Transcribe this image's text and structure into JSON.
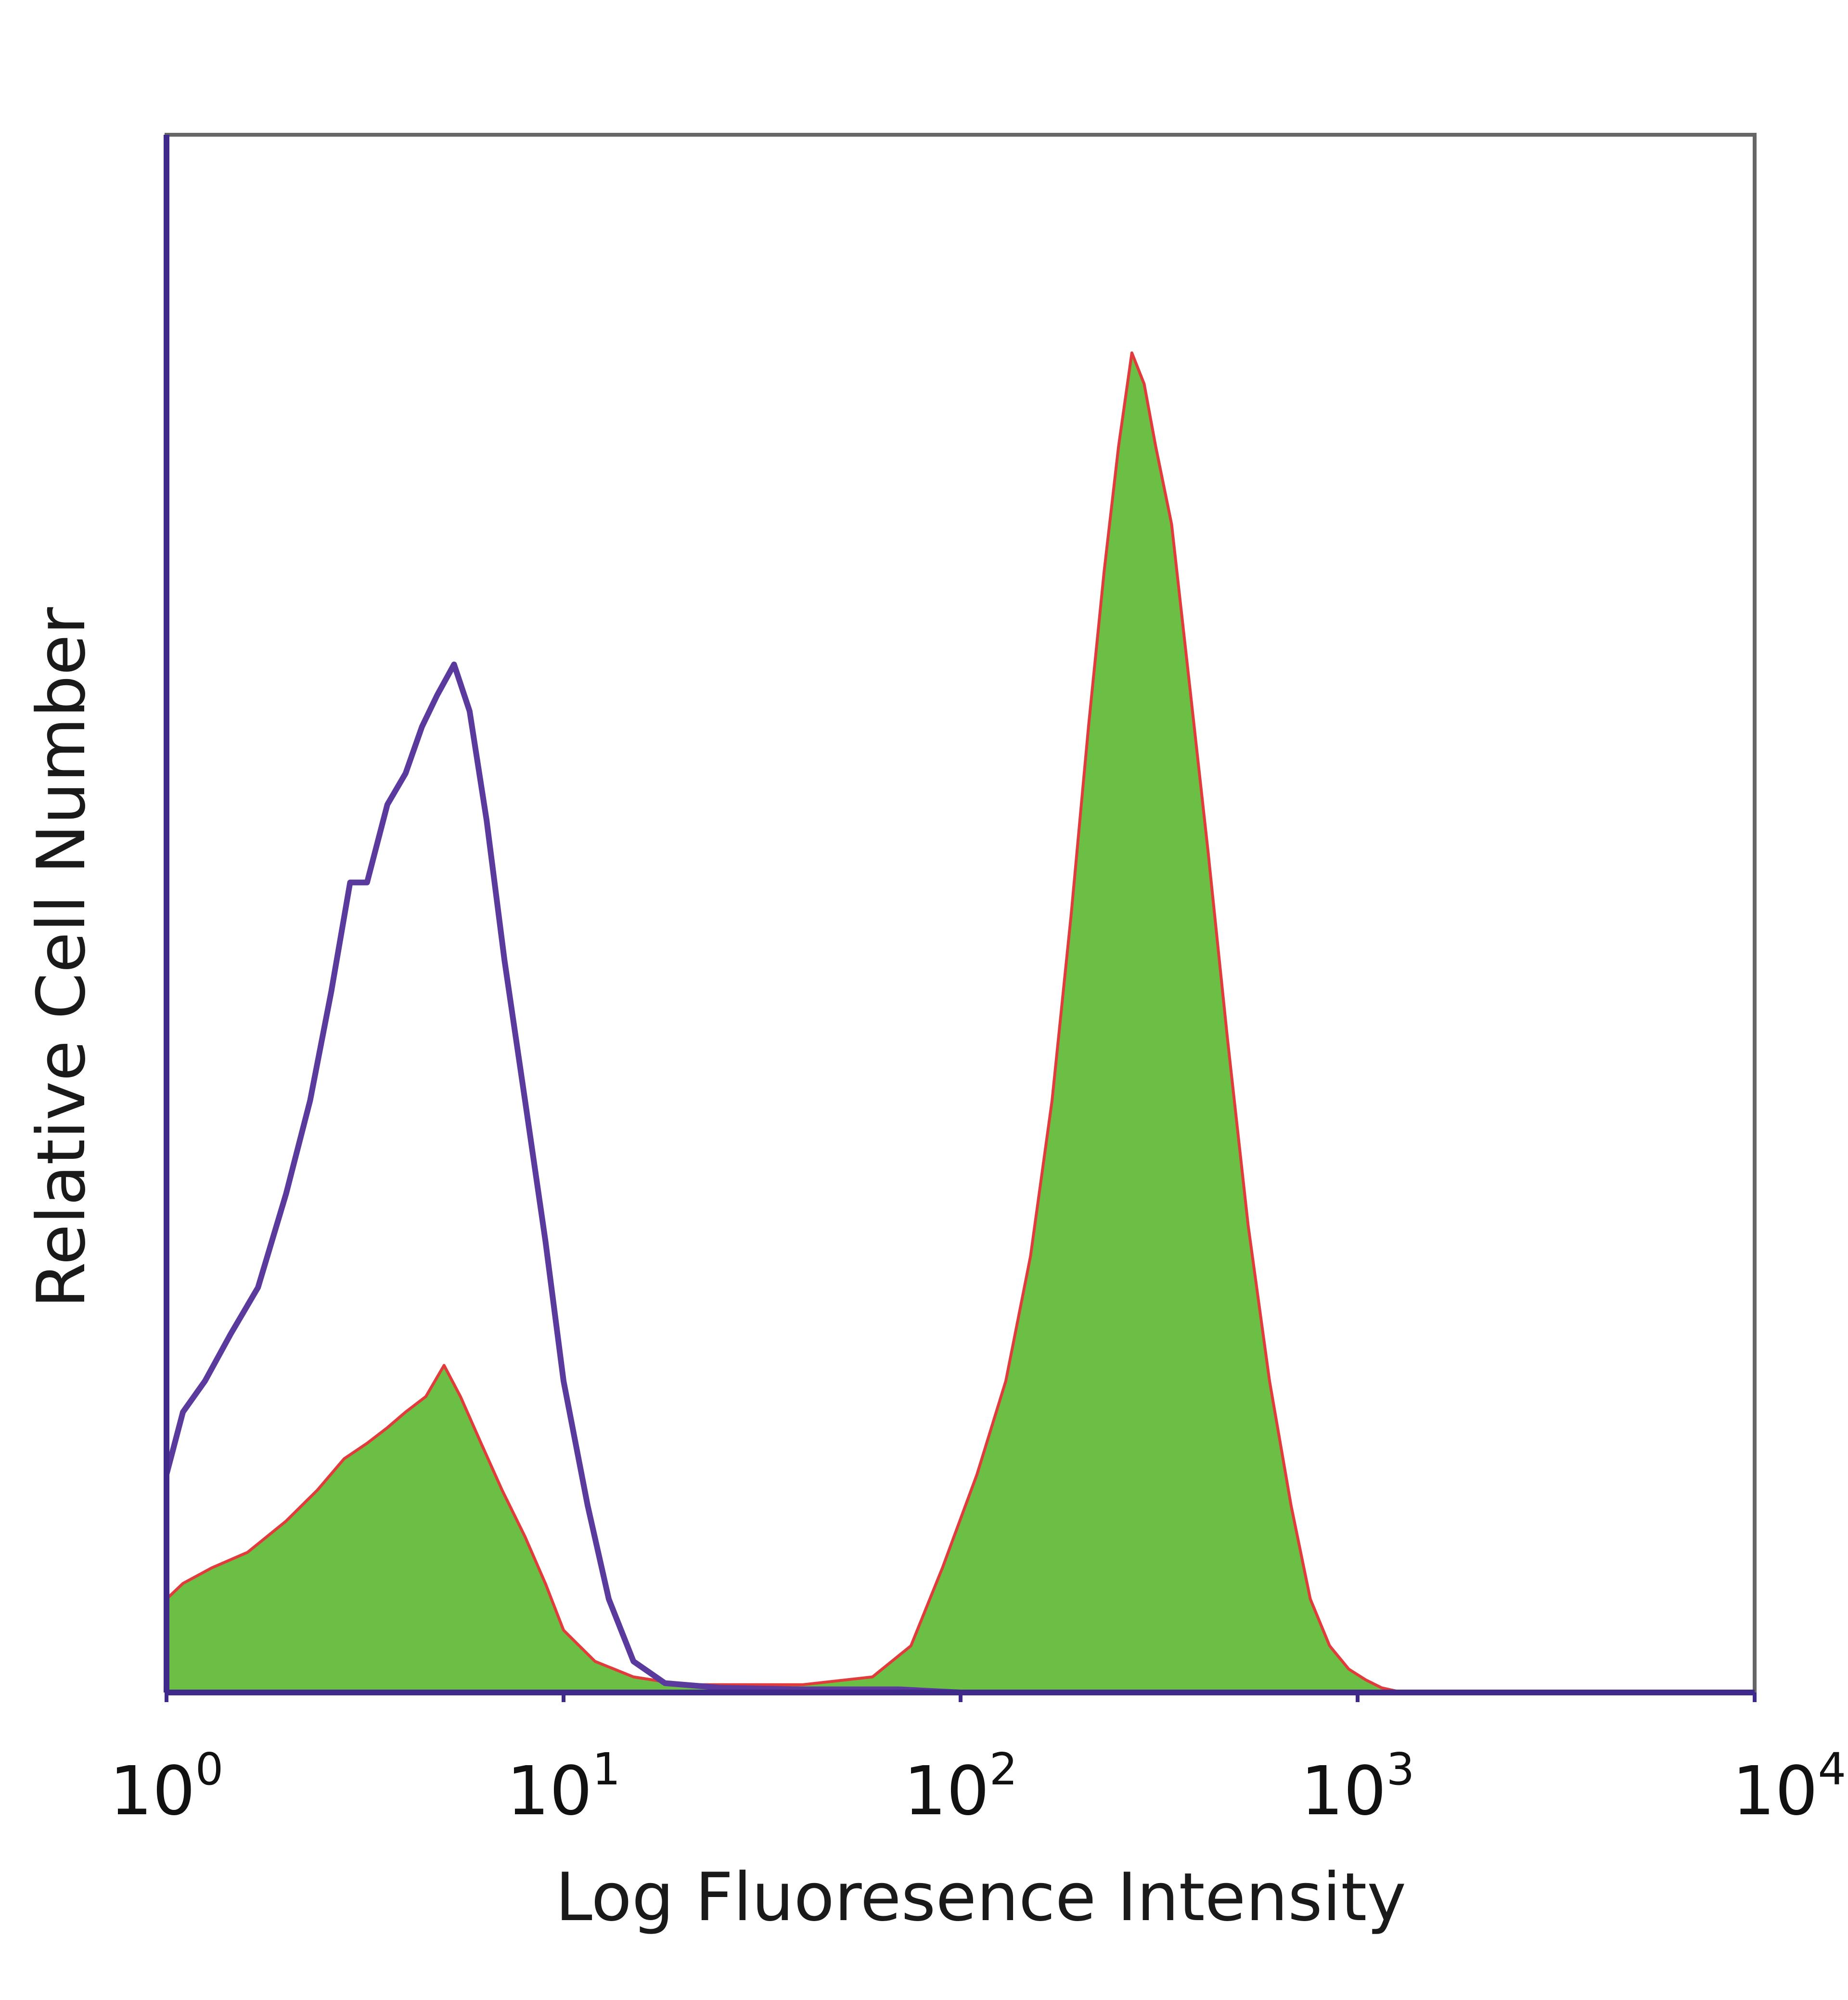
{
  "chart_data": {
    "type": "area",
    "xlabel": "Log Fluoresence Intensity",
    "ylabel": "Relative Cell Number",
    "x_scale": "log",
    "xlim": [
      1,
      10000
    ],
    "ylim": [
      0,
      100
    ],
    "x_ticks": [
      {
        "base": "10",
        "exp": "0",
        "value": 1
      },
      {
        "base": "10",
        "exp": "1",
        "value": 10
      },
      {
        "base": "10",
        "exp": "2",
        "value": 100
      },
      {
        "base": "10",
        "exp": "3",
        "value": 1000
      },
      {
        "base": "10",
        "exp": "4",
        "value": 10000
      }
    ],
    "series": [
      {
        "style": "outline",
        "color": "#5b3a9e",
        "x": [
          1,
          1.1,
          1.25,
          1.45,
          1.7,
          2.0,
          2.3,
          2.6,
          2.9,
          3.2,
          3.6,
          4.0,
          4.4,
          4.8,
          5.3,
          5.8,
          6.4,
          7.1,
          8.0,
          9.0,
          10.0,
          11.5,
          13.0,
          15.0,
          18.0,
          25,
          40,
          70,
          100,
          10000
        ],
        "values": [
          14,
          18,
          20,
          23,
          26,
          32,
          38,
          45,
          52,
          52,
          57,
          59,
          62,
          64,
          66,
          63,
          56,
          47,
          38,
          29,
          20,
          12,
          6,
          2,
          0.6,
          0.3,
          0.2,
          0.2,
          0,
          0
        ]
      },
      {
        "style": "filled",
        "color": "#6bbf45",
        "edge_color": "#e23b3b",
        "x": [
          1,
          1.1,
          1.3,
          1.6,
          2.0,
          2.4,
          2.8,
          3.2,
          3.6,
          4.0,
          4.5,
          5.0,
          5.5,
          6.2,
          7.0,
          8.0,
          9.0,
          10.0,
          12.0,
          15.0,
          20,
          40,
          60,
          75,
          90,
          110,
          130,
          150,
          170,
          190,
          210,
          230,
          250,
          270,
          290,
          310,
          340,
          380,
          420,
          470,
          530,
          600,
          680,
          760,
          850,
          950,
          1050,
          1150,
          1300,
          10000
        ],
        "values": [
          6,
          7,
          8,
          9,
          11,
          13,
          15,
          16,
          17,
          18,
          19,
          21,
          19,
          16,
          13,
          10,
          7,
          4,
          2,
          1,
          0.5,
          0.5,
          1,
          3,
          8,
          14,
          20,
          28,
          38,
          50,
          62,
          72,
          80,
          86,
          84,
          80,
          75,
          64,
          54,
          42,
          30,
          20,
          12,
          6,
          3,
          1.5,
          0.8,
          0.3,
          0,
          0
        ]
      }
    ]
  }
}
